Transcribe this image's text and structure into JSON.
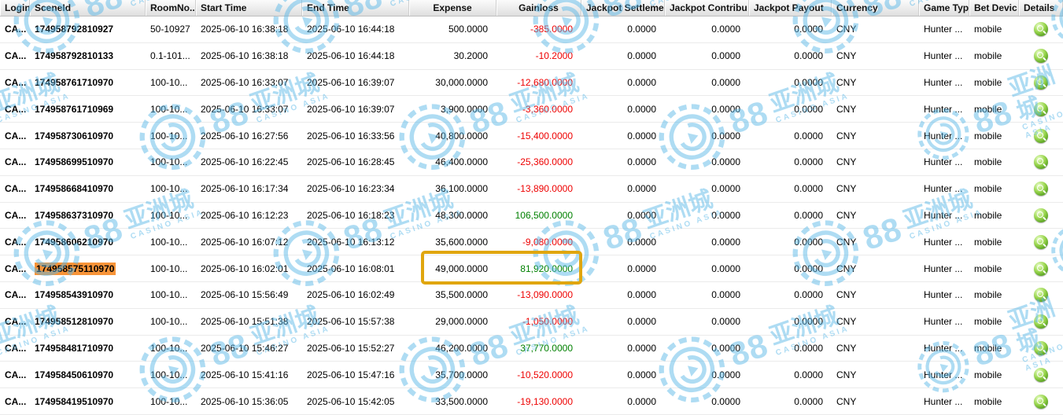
{
  "table": {
    "columns": [
      {
        "key": "login",
        "label": "Login",
        "halign": "left",
        "align": "left"
      },
      {
        "key": "sceneId",
        "label": "SceneId",
        "halign": "left",
        "align": "left"
      },
      {
        "key": "roomNo",
        "label": "RoomNo..",
        "halign": "left",
        "align": "left"
      },
      {
        "key": "startTime",
        "label": "Start Time",
        "halign": "left",
        "align": "left"
      },
      {
        "key": "endTime",
        "label": "End Time",
        "halign": "left",
        "align": "left"
      },
      {
        "key": "expense",
        "label": "Expense",
        "halign": "center",
        "align": "right"
      },
      {
        "key": "gainloss",
        "label": "Gainloss",
        "halign": "center",
        "align": "right"
      },
      {
        "key": "jackpotSettlement",
        "label": "Jackpot Settleme",
        "halign": "left",
        "align": "right"
      },
      {
        "key": "jackpotContribution",
        "label": "Jackpot Contribu",
        "halign": "left",
        "align": "right"
      },
      {
        "key": "jackpotPayout",
        "label": "Jackpot Payout",
        "halign": "left",
        "align": "right"
      },
      {
        "key": "currency",
        "label": "Currency",
        "halign": "left",
        "align": "left"
      },
      {
        "key": "gameType",
        "label": "Game Typ",
        "halign": "left",
        "align": "left"
      },
      {
        "key": "betDevice",
        "label": "Bet Devic",
        "halign": "left",
        "align": "left"
      },
      {
        "key": "details",
        "label": "Details",
        "halign": "left",
        "align": "center"
      }
    ],
    "rows": [
      {
        "login": "CA...",
        "sceneId": "174958792810927",
        "roomNo": "50-10927",
        "startTime": "2025-06-10 16:38:18",
        "endTime": "2025-06-10 16:44:18",
        "expense": "500.0000",
        "gainloss": "-385.0000",
        "jackpotSettlement": "0.0000",
        "jackpotContribution": "0.0000",
        "jackpotPayout": "0.0000",
        "currency": "CNY",
        "gameType": "Hunter ...",
        "betDevice": "mobile"
      },
      {
        "login": "CA...",
        "sceneId": "174958792810133",
        "roomNo": "0.1-101...",
        "startTime": "2025-06-10 16:38:18",
        "endTime": "2025-06-10 16:44:18",
        "expense": "30.2000",
        "gainloss": "-10.2000",
        "jackpotSettlement": "0.0000",
        "jackpotContribution": "0.0000",
        "jackpotPayout": "0.0000",
        "currency": "CNY",
        "gameType": "Hunter ...",
        "betDevice": "mobile"
      },
      {
        "login": "CA...",
        "sceneId": "174958761710970",
        "roomNo": "100-10...",
        "startTime": "2025-06-10 16:33:07",
        "endTime": "2025-06-10 16:39:07",
        "expense": "30,000.0000",
        "gainloss": "-12,680.0000",
        "jackpotSettlement": "0.0000",
        "jackpotContribution": "0.0000",
        "jackpotPayout": "0.0000",
        "currency": "CNY",
        "gameType": "Hunter ...",
        "betDevice": "mobile"
      },
      {
        "login": "CA...",
        "sceneId": "174958761710969",
        "roomNo": "100-10...",
        "startTime": "2025-06-10 16:33:07",
        "endTime": "2025-06-10 16:39:07",
        "expense": "3,900.0000",
        "gainloss": "-3,360.0000",
        "jackpotSettlement": "0.0000",
        "jackpotContribution": "0.0000",
        "jackpotPayout": "0.0000",
        "currency": "CNY",
        "gameType": "Hunter ...",
        "betDevice": "mobile"
      },
      {
        "login": "CA...",
        "sceneId": "174958730610970",
        "roomNo": "100-10...",
        "startTime": "2025-06-10 16:27:56",
        "endTime": "2025-06-10 16:33:56",
        "expense": "40,800.0000",
        "gainloss": "-15,400.0000",
        "jackpotSettlement": "0.0000",
        "jackpotContribution": "0.0000",
        "jackpotPayout": "0.0000",
        "currency": "CNY",
        "gameType": "Hunter ...",
        "betDevice": "mobile"
      },
      {
        "login": "CA...",
        "sceneId": "174958699510970",
        "roomNo": "100-10...",
        "startTime": "2025-06-10 16:22:45",
        "endTime": "2025-06-10 16:28:45",
        "expense": "46,400.0000",
        "gainloss": "-25,360.0000",
        "jackpotSettlement": "0.0000",
        "jackpotContribution": "0.0000",
        "jackpotPayout": "0.0000",
        "currency": "CNY",
        "gameType": "Hunter ...",
        "betDevice": "mobile"
      },
      {
        "login": "CA...",
        "sceneId": "174958668410970",
        "roomNo": "100-10...",
        "startTime": "2025-06-10 16:17:34",
        "endTime": "2025-06-10 16:23:34",
        "expense": "36,100.0000",
        "gainloss": "-13,890.0000",
        "jackpotSettlement": "0.0000",
        "jackpotContribution": "0.0000",
        "jackpotPayout": "0.0000",
        "currency": "CNY",
        "gameType": "Hunter ...",
        "betDevice": "mobile"
      },
      {
        "login": "CA...",
        "sceneId": "174958637310970",
        "roomNo": "100-10...",
        "startTime": "2025-06-10 16:12:23",
        "endTime": "2025-06-10 16:18:23",
        "expense": "48,300.0000",
        "gainloss": "106,500.0000",
        "jackpotSettlement": "0.0000",
        "jackpotContribution": "0.0000",
        "jackpotPayout": "0.0000",
        "currency": "CNY",
        "gameType": "Hunter ...",
        "betDevice": "mobile"
      },
      {
        "login": "CA...",
        "sceneId": "174958606210970",
        "roomNo": "100-10...",
        "startTime": "2025-06-10 16:07:12",
        "endTime": "2025-06-10 16:13:12",
        "expense": "35,600.0000",
        "gainloss": "-9,080.0000",
        "jackpotSettlement": "0.0000",
        "jackpotContribution": "0.0000",
        "jackpotPayout": "0.0000",
        "currency": "CNY",
        "gameType": "Hunter ...",
        "betDevice": "mobile"
      },
      {
        "login": "CA...",
        "sceneId": "174958575110970",
        "highlighted": true,
        "roomNo": "100-10...",
        "startTime": "2025-06-10 16:02:01",
        "endTime": "2025-06-10 16:08:01",
        "expense": "49,000.0000",
        "gainloss": "81,920.0000",
        "jackpotSettlement": "0.0000",
        "jackpotContribution": "0.0000",
        "jackpotPayout": "0.0000",
        "currency": "CNY",
        "gameType": "Hunter ...",
        "betDevice": "mobile"
      },
      {
        "login": "CA...",
        "sceneId": "174958543910970",
        "roomNo": "100-10...",
        "startTime": "2025-06-10 15:56:49",
        "endTime": "2025-06-10 16:02:49",
        "expense": "35,500.0000",
        "gainloss": "-13,090.0000",
        "jackpotSettlement": "0.0000",
        "jackpotContribution": "0.0000",
        "jackpotPayout": "0.0000",
        "currency": "CNY",
        "gameType": "Hunter ...",
        "betDevice": "mobile"
      },
      {
        "login": "CA...",
        "sceneId": "174958512810970",
        "roomNo": "100-10...",
        "startTime": "2025-06-10 15:51:38",
        "endTime": "2025-06-10 15:57:38",
        "expense": "29,000.0000",
        "gainloss": "-1,050.0000",
        "jackpotSettlement": "0.0000",
        "jackpotContribution": "0.0000",
        "jackpotPayout": "0.0000",
        "currency": "CNY",
        "gameType": "Hunter ...",
        "betDevice": "mobile"
      },
      {
        "login": "CA...",
        "sceneId": "174958481710970",
        "roomNo": "100-10...",
        "startTime": "2025-06-10 15:46:27",
        "endTime": "2025-06-10 15:52:27",
        "expense": "46,200.0000",
        "gainloss": "37,770.0000",
        "jackpotSettlement": "0.0000",
        "jackpotContribution": "0.0000",
        "jackpotPayout": "0.0000",
        "currency": "CNY",
        "gameType": "Hunter ...",
        "betDevice": "mobile"
      },
      {
        "login": "CA...",
        "sceneId": "174958450610970",
        "roomNo": "100-10...",
        "startTime": "2025-06-10 15:41:16",
        "endTime": "2025-06-10 15:47:16",
        "expense": "35,700.0000",
        "gainloss": "-10,520.0000",
        "jackpotSettlement": "0.0000",
        "jackpotContribution": "0.0000",
        "jackpotPayout": "0.0000",
        "currency": "CNY",
        "gameType": "Hunter ...",
        "betDevice": "mobile"
      },
      {
        "login": "CA...",
        "sceneId": "174958419510970",
        "roomNo": "100-10...",
        "startTime": "2025-06-10 15:36:05",
        "endTime": "2025-06-10 15:42:05",
        "expense": "33,500.0000",
        "gainloss": "-19,130.0000",
        "jackpotSettlement": "0.0000",
        "jackpotContribution": "0.0000",
        "jackpotPayout": "0.0000",
        "currency": "CNY",
        "gameType": "Hunter ...",
        "betDevice": "mobile"
      }
    ]
  },
  "annotation": {
    "highlighted_scene_id": "174958575110970",
    "highlight_color": "#f79438",
    "box_color": "#e0a60e"
  },
  "colors": {
    "negative": "#ee0000",
    "positive": "#008000",
    "watermark": "#58b7e8"
  },
  "watermark": {
    "number": "88",
    "cn": "亚洲城",
    "en": "CASINO ASIA"
  },
  "icons": {
    "details": "magnifier-icon"
  }
}
